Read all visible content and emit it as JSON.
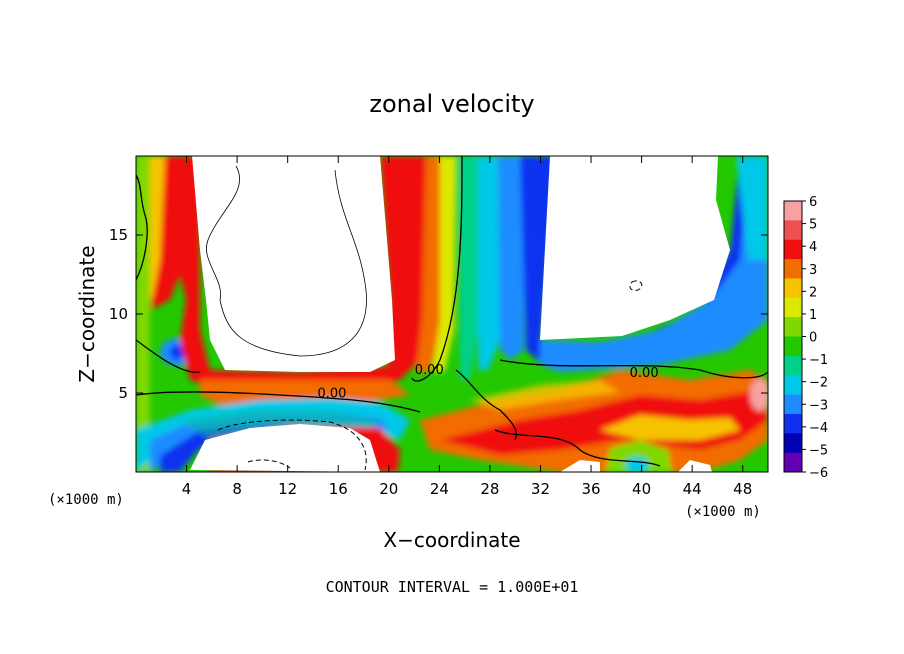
{
  "chart_data": {
    "type": "heatmap",
    "title": "zonal velocity",
    "xlabel": "X−coordinate",
    "ylabel": "Z−coordinate",
    "x_unit_left": "(×1000 m)",
    "x_unit_right": "(×1000 m)",
    "xlim": [
      0,
      50
    ],
    "ylim": [
      0,
      20
    ],
    "x_ticks": [
      4,
      8,
      12,
      16,
      20,
      24,
      28,
      32,
      36,
      40,
      44,
      48
    ],
    "y_ticks": [
      5,
      10,
      15
    ],
    "colorbar": {
      "ticks": [
        6,
        5,
        4,
        3,
        2,
        1,
        0,
        -1,
        -2,
        -3,
        -4,
        -5,
        -6
      ],
      "labels": [
        "6",
        "5",
        "4",
        "3",
        "2",
        "1",
        "0",
        "−1",
        "−2",
        "−3",
        "−4",
        "−5",
        "−6"
      ],
      "colors": [
        "#f6a2a2",
        "#f05050",
        "#f01010",
        "#f26c00",
        "#f6c300",
        "#dce800",
        "#7fd800",
        "#23c800",
        "#00d08a",
        "#00c8e8",
        "#1e8cff",
        "#1030f0",
        "#0000b4",
        "#6400b4"
      ]
    },
    "contour_labels": [
      {
        "text": "0.00",
        "x": 15.5,
        "y": 4.7
      },
      {
        "text": "0.00",
        "x": 23.2,
        "y": 6.2
      },
      {
        "text": "0.00",
        "x": 40.2,
        "y": 6.0
      }
    ],
    "grid": false,
    "legend": "colorbar right"
  },
  "footer": {
    "contour_interval": "CONTOUR INTERVAL = 1.000E+01"
  }
}
